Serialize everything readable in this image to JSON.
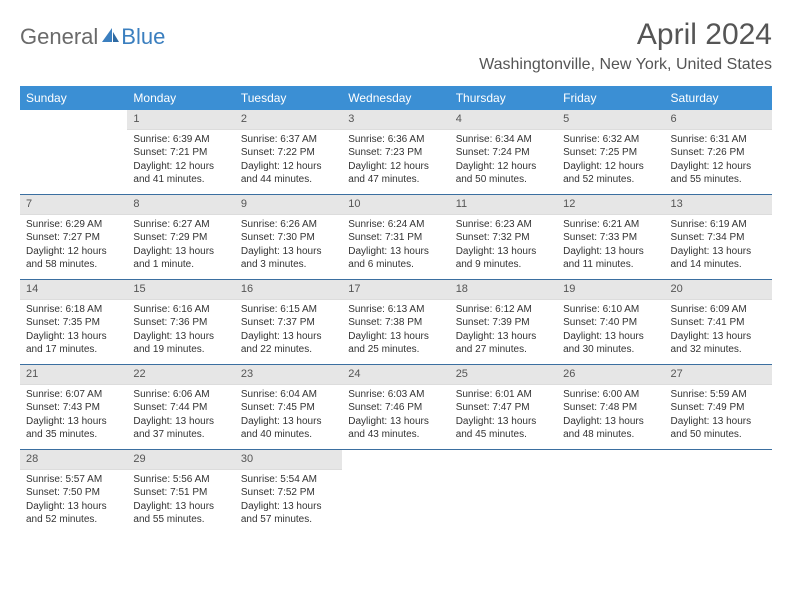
{
  "logo": {
    "general": "General",
    "blue": "Blue"
  },
  "title": "April 2024",
  "location": "Washingtonville, New York, United States",
  "day_headers": [
    "Sunday",
    "Monday",
    "Tuesday",
    "Wednesday",
    "Thursday",
    "Friday",
    "Saturday"
  ],
  "colors": {
    "header_bg": "#3b8fd4",
    "header_text": "#ffffff",
    "daynum_bg": "#e6e6e6",
    "week_divider": "#3b6fa0",
    "logo_blue": "#3b7fbf",
    "logo_gray": "#6a6a6a"
  },
  "weeks": [
    [
      null,
      {
        "n": "1",
        "sr": "Sunrise: 6:39 AM",
        "ss": "Sunset: 7:21 PM",
        "d1": "Daylight: 12 hours",
        "d2": "and 41 minutes."
      },
      {
        "n": "2",
        "sr": "Sunrise: 6:37 AM",
        "ss": "Sunset: 7:22 PM",
        "d1": "Daylight: 12 hours",
        "d2": "and 44 minutes."
      },
      {
        "n": "3",
        "sr": "Sunrise: 6:36 AM",
        "ss": "Sunset: 7:23 PM",
        "d1": "Daylight: 12 hours",
        "d2": "and 47 minutes."
      },
      {
        "n": "4",
        "sr": "Sunrise: 6:34 AM",
        "ss": "Sunset: 7:24 PM",
        "d1": "Daylight: 12 hours",
        "d2": "and 50 minutes."
      },
      {
        "n": "5",
        "sr": "Sunrise: 6:32 AM",
        "ss": "Sunset: 7:25 PM",
        "d1": "Daylight: 12 hours",
        "d2": "and 52 minutes."
      },
      {
        "n": "6",
        "sr": "Sunrise: 6:31 AM",
        "ss": "Sunset: 7:26 PM",
        "d1": "Daylight: 12 hours",
        "d2": "and 55 minutes."
      }
    ],
    [
      {
        "n": "7",
        "sr": "Sunrise: 6:29 AM",
        "ss": "Sunset: 7:27 PM",
        "d1": "Daylight: 12 hours",
        "d2": "and 58 minutes."
      },
      {
        "n": "8",
        "sr": "Sunrise: 6:27 AM",
        "ss": "Sunset: 7:29 PM",
        "d1": "Daylight: 13 hours",
        "d2": "and 1 minute."
      },
      {
        "n": "9",
        "sr": "Sunrise: 6:26 AM",
        "ss": "Sunset: 7:30 PM",
        "d1": "Daylight: 13 hours",
        "d2": "and 3 minutes."
      },
      {
        "n": "10",
        "sr": "Sunrise: 6:24 AM",
        "ss": "Sunset: 7:31 PM",
        "d1": "Daylight: 13 hours",
        "d2": "and 6 minutes."
      },
      {
        "n": "11",
        "sr": "Sunrise: 6:23 AM",
        "ss": "Sunset: 7:32 PM",
        "d1": "Daylight: 13 hours",
        "d2": "and 9 minutes."
      },
      {
        "n": "12",
        "sr": "Sunrise: 6:21 AM",
        "ss": "Sunset: 7:33 PM",
        "d1": "Daylight: 13 hours",
        "d2": "and 11 minutes."
      },
      {
        "n": "13",
        "sr": "Sunrise: 6:19 AM",
        "ss": "Sunset: 7:34 PM",
        "d1": "Daylight: 13 hours",
        "d2": "and 14 minutes."
      }
    ],
    [
      {
        "n": "14",
        "sr": "Sunrise: 6:18 AM",
        "ss": "Sunset: 7:35 PM",
        "d1": "Daylight: 13 hours",
        "d2": "and 17 minutes."
      },
      {
        "n": "15",
        "sr": "Sunrise: 6:16 AM",
        "ss": "Sunset: 7:36 PM",
        "d1": "Daylight: 13 hours",
        "d2": "and 19 minutes."
      },
      {
        "n": "16",
        "sr": "Sunrise: 6:15 AM",
        "ss": "Sunset: 7:37 PM",
        "d1": "Daylight: 13 hours",
        "d2": "and 22 minutes."
      },
      {
        "n": "17",
        "sr": "Sunrise: 6:13 AM",
        "ss": "Sunset: 7:38 PM",
        "d1": "Daylight: 13 hours",
        "d2": "and 25 minutes."
      },
      {
        "n": "18",
        "sr": "Sunrise: 6:12 AM",
        "ss": "Sunset: 7:39 PM",
        "d1": "Daylight: 13 hours",
        "d2": "and 27 minutes."
      },
      {
        "n": "19",
        "sr": "Sunrise: 6:10 AM",
        "ss": "Sunset: 7:40 PM",
        "d1": "Daylight: 13 hours",
        "d2": "and 30 minutes."
      },
      {
        "n": "20",
        "sr": "Sunrise: 6:09 AM",
        "ss": "Sunset: 7:41 PM",
        "d1": "Daylight: 13 hours",
        "d2": "and 32 minutes."
      }
    ],
    [
      {
        "n": "21",
        "sr": "Sunrise: 6:07 AM",
        "ss": "Sunset: 7:43 PM",
        "d1": "Daylight: 13 hours",
        "d2": "and 35 minutes."
      },
      {
        "n": "22",
        "sr": "Sunrise: 6:06 AM",
        "ss": "Sunset: 7:44 PM",
        "d1": "Daylight: 13 hours",
        "d2": "and 37 minutes."
      },
      {
        "n": "23",
        "sr": "Sunrise: 6:04 AM",
        "ss": "Sunset: 7:45 PM",
        "d1": "Daylight: 13 hours",
        "d2": "and 40 minutes."
      },
      {
        "n": "24",
        "sr": "Sunrise: 6:03 AM",
        "ss": "Sunset: 7:46 PM",
        "d1": "Daylight: 13 hours",
        "d2": "and 43 minutes."
      },
      {
        "n": "25",
        "sr": "Sunrise: 6:01 AM",
        "ss": "Sunset: 7:47 PM",
        "d1": "Daylight: 13 hours",
        "d2": "and 45 minutes."
      },
      {
        "n": "26",
        "sr": "Sunrise: 6:00 AM",
        "ss": "Sunset: 7:48 PM",
        "d1": "Daylight: 13 hours",
        "d2": "and 48 minutes."
      },
      {
        "n": "27",
        "sr": "Sunrise: 5:59 AM",
        "ss": "Sunset: 7:49 PM",
        "d1": "Daylight: 13 hours",
        "d2": "and 50 minutes."
      }
    ],
    [
      {
        "n": "28",
        "sr": "Sunrise: 5:57 AM",
        "ss": "Sunset: 7:50 PM",
        "d1": "Daylight: 13 hours",
        "d2": "and 52 minutes."
      },
      {
        "n": "29",
        "sr": "Sunrise: 5:56 AM",
        "ss": "Sunset: 7:51 PM",
        "d1": "Daylight: 13 hours",
        "d2": "and 55 minutes."
      },
      {
        "n": "30",
        "sr": "Sunrise: 5:54 AM",
        "ss": "Sunset: 7:52 PM",
        "d1": "Daylight: 13 hours",
        "d2": "and 57 minutes."
      },
      null,
      null,
      null,
      null
    ]
  ]
}
